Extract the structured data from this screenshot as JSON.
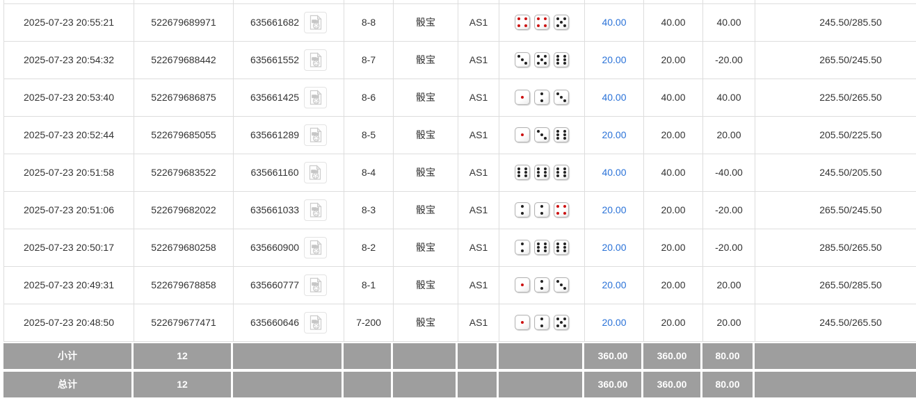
{
  "colors": {
    "link": "#2a72d8",
    "negative": "#e53935",
    "text": "#333333",
    "footer_bg": "#9e9e9e",
    "border": "#dddddd",
    "pip_dark": "#222222",
    "pip_red": "#cc1111"
  },
  "icons": {
    "replay": "video-file-icon"
  },
  "table": {
    "rows": [
      {
        "time": "2025-07-23 20:55:21",
        "order_no": "522679689971",
        "game_no": "635661682",
        "round": "8-8",
        "game": "骰宝",
        "table_code": "AS1",
        "dice": [
          4,
          4,
          5
        ],
        "bet": "40.00",
        "valid_bet": "40.00",
        "win_loss": "40.00",
        "balance": "245.50/285.50"
      },
      {
        "time": "2025-07-23 20:54:32",
        "order_no": "522679688442",
        "game_no": "635661552",
        "round": "8-7",
        "game": "骰宝",
        "table_code": "AS1",
        "dice": [
          3,
          5,
          6
        ],
        "bet": "20.00",
        "valid_bet": "20.00",
        "win_loss": "-20.00",
        "balance": "265.50/245.50"
      },
      {
        "time": "2025-07-23 20:53:40",
        "order_no": "522679686875",
        "game_no": "635661425",
        "round": "8-6",
        "game": "骰宝",
        "table_code": "AS1",
        "dice": [
          1,
          2,
          3
        ],
        "bet": "40.00",
        "valid_bet": "40.00",
        "win_loss": "40.00",
        "balance": "225.50/265.50"
      },
      {
        "time": "2025-07-23 20:52:44",
        "order_no": "522679685055",
        "game_no": "635661289",
        "round": "8-5",
        "game": "骰宝",
        "table_code": "AS1",
        "dice": [
          1,
          3,
          6
        ],
        "bet": "20.00",
        "valid_bet": "20.00",
        "win_loss": "20.00",
        "balance": "205.50/225.50"
      },
      {
        "time": "2025-07-23 20:51:58",
        "order_no": "522679683522",
        "game_no": "635661160",
        "round": "8-4",
        "game": "骰宝",
        "table_code": "AS1",
        "dice": [
          6,
          6,
          6
        ],
        "bet": "40.00",
        "valid_bet": "40.00",
        "win_loss": "-40.00",
        "balance": "245.50/205.50"
      },
      {
        "time": "2025-07-23 20:51:06",
        "order_no": "522679682022",
        "game_no": "635661033",
        "round": "8-3",
        "game": "骰宝",
        "table_code": "AS1",
        "dice": [
          2,
          2,
          4
        ],
        "bet": "20.00",
        "valid_bet": "20.00",
        "win_loss": "-20.00",
        "balance": "265.50/245.50"
      },
      {
        "time": "2025-07-23 20:50:17",
        "order_no": "522679680258",
        "game_no": "635660900",
        "round": "8-2",
        "game": "骰宝",
        "table_code": "AS1",
        "dice": [
          2,
          6,
          6
        ],
        "bet": "20.00",
        "valid_bet": "20.00",
        "win_loss": "-20.00",
        "balance": "285.50/265.50"
      },
      {
        "time": "2025-07-23 20:49:31",
        "order_no": "522679678858",
        "game_no": "635660777",
        "round": "8-1",
        "game": "骰宝",
        "table_code": "AS1",
        "dice": [
          1,
          2,
          3
        ],
        "bet": "20.00",
        "valid_bet": "20.00",
        "win_loss": "20.00",
        "balance": "265.50/285.50"
      },
      {
        "time": "2025-07-23 20:48:50",
        "order_no": "522679677471",
        "game_no": "635660646",
        "round": "7-200",
        "game": "骰宝",
        "table_code": "AS1",
        "dice": [
          1,
          2,
          5
        ],
        "bet": "20.00",
        "valid_bet": "20.00",
        "win_loss": "20.00",
        "balance": "245.50/265.50"
      }
    ],
    "footer": [
      {
        "label": "小计",
        "count": "12",
        "bet": "360.00",
        "valid_bet": "360.00",
        "win_loss": "80.00"
      },
      {
        "label": "总计",
        "count": "12",
        "bet": "360.00",
        "valid_bet": "360.00",
        "win_loss": "80.00"
      }
    ]
  }
}
